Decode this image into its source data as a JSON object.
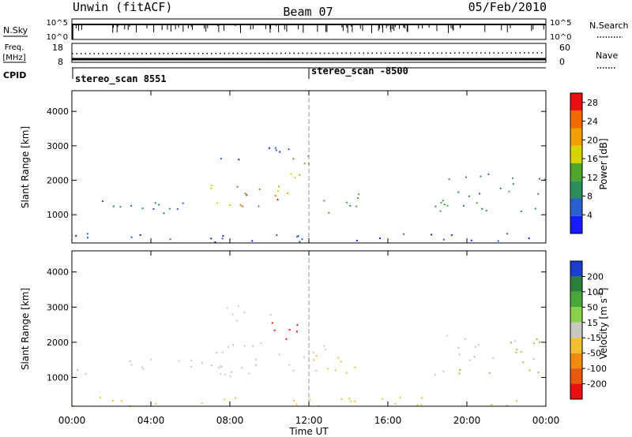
{
  "header": {
    "station": "Unwin (fitACF)",
    "beam": "Beam 07",
    "date": "05/Feb/2010"
  },
  "top_panels": {
    "nsky_label": "N.Sky",
    "nsearch_label": "N.Search",
    "nsky_ticks": [
      "10^5",
      "10^0"
    ],
    "nsearch_ticks": [
      "10^5",
      "10^0"
    ],
    "freq_label_1": "Freq.",
    "freq_label_2": "[MHz]",
    "freq_ticks": [
      "18",
      "8"
    ],
    "nave_label": "Nave",
    "nave_ticks": [
      "60",
      "0"
    ],
    "cpid_label": "CPID",
    "cpid_segments": [
      {
        "label": "stereo_scan 8551",
        "start_hour": 0
      },
      {
        "label": "stereo_scan -8500",
        "start_hour": 12
      }
    ]
  },
  "chart_data": [
    {
      "type": "heatmap",
      "panel": "power",
      "ylabel": "Slant Range [km]",
      "xlabel": "Time UT",
      "xlim_hours": [
        0,
        24
      ],
      "ylim": [
        180,
        4600
      ],
      "x_ticks": [
        "00:00",
        "04:00",
        "08:00",
        "12:00",
        "16:00",
        "20:00",
        "00:00"
      ],
      "y_ticks": [
        1000,
        2000,
        3000,
        4000
      ],
      "colorbar": {
        "label": "Power [dB]",
        "ticks": [
          4,
          8,
          12,
          16,
          20,
          24,
          28
        ],
        "range": [
          0,
          30
        ],
        "colors": [
          "#1a1aff",
          "#2a5fd0",
          "#2c8f5a",
          "#4fa62a",
          "#d6d400",
          "#f0a000",
          "#f26a00",
          "#e81010"
        ]
      },
      "scatter_regions": [
        {
          "t0": 0.0,
          "t1": 6.0,
          "r0": 1050,
          "r1": 1550,
          "value": 8
        },
        {
          "t0": 6.0,
          "t1": 9.5,
          "r0": 1250,
          "r1": 1900,
          "value": 14
        },
        {
          "t0": 8.0,
          "t1": 10.5,
          "r0": 1250,
          "r1": 1650,
          "value": 25
        },
        {
          "t0": 10.0,
          "t1": 11.8,
          "r0": 1600,
          "r1": 2300,
          "value": 20
        },
        {
          "t0": 11.0,
          "t1": 12.5,
          "r0": 2000,
          "r1": 2800,
          "value": 14
        },
        {
          "t0": 12.5,
          "t1": 14.5,
          "r0": 900,
          "r1": 1800,
          "value": 12
        },
        {
          "t0": 7.5,
          "t1": 11.0,
          "r0": 2600,
          "r1": 3100,
          "value": 4
        },
        {
          "t0": 18.3,
          "t1": 24.0,
          "r0": 1100,
          "r1": 2300,
          "value": 10
        },
        {
          "t0": 0.0,
          "t1": 24.0,
          "r0": 200,
          "r1": 480,
          "value": 4
        }
      ]
    },
    {
      "type": "heatmap",
      "panel": "velocity",
      "ylabel": "Slant Range [km]",
      "xlabel": "Time UT",
      "xlim_hours": [
        0,
        24
      ],
      "ylim": [
        180,
        4600
      ],
      "x_ticks": [
        "00:00",
        "04:00",
        "08:00",
        "12:00",
        "16:00",
        "20:00",
        "00:00"
      ],
      "y_ticks": [
        1000,
        2000,
        3000,
        4000
      ],
      "colorbar": {
        "label": "Velocity [m s^-1]",
        "ticks": [
          200,
          100,
          50,
          15,
          -15,
          -50,
          -100,
          -200
        ],
        "colors": [
          "#1a3fd0",
          "#2b7f3a",
          "#4aa83a",
          "#8bd04a",
          "#c8c8c0",
          "#f0c030",
          "#f08a10",
          "#e85a10",
          "#e81010"
        ]
      },
      "scatter_regions": [
        {
          "t0": 0.0,
          "t1": 9.5,
          "r0": 1050,
          "r1": 1600,
          "value": 0
        },
        {
          "t0": 6.5,
          "t1": 12.8,
          "r0": 1200,
          "r1": 2000,
          "value": 0
        },
        {
          "t0": 9.5,
          "t1": 11.6,
          "r0": 1800,
          "r1": 2600,
          "value": -200
        },
        {
          "t0": 12.0,
          "t1": 14.5,
          "r0": 1100,
          "r1": 1900,
          "value": -60
        },
        {
          "t0": 18.3,
          "t1": 24.0,
          "r0": 1100,
          "r1": 2300,
          "value": 15
        },
        {
          "t0": 0.0,
          "t1": 24.0,
          "r0": 200,
          "r1": 480,
          "value": -50
        },
        {
          "t0": 7.5,
          "t1": 10.5,
          "r0": 2600,
          "r1": 3100,
          "value": 0
        }
      ]
    }
  ]
}
